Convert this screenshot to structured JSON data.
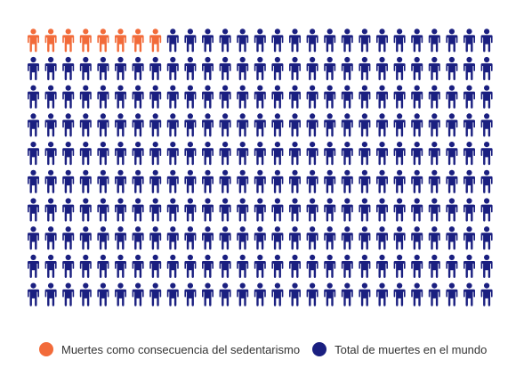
{
  "chart_data": {
    "type": "pictogram",
    "total_icons": 270,
    "rows": 10,
    "columns": 27,
    "series": [
      {
        "name": "Muertes como consecuencia del sedentarismo",
        "count": 8,
        "color": "#F26B3A"
      },
      {
        "name": "Total de muertes en el mundo",
        "count": 262,
        "color": "#1A1F80"
      }
    ],
    "legend_position": "bottom-left"
  },
  "legend": {
    "items": [
      {
        "label": "Muertes como consecuencia del sedentarismo",
        "color": "#F26B3A"
      },
      {
        "label": "Total de muertes en el mundo",
        "color": "#1A1F80"
      }
    ]
  }
}
